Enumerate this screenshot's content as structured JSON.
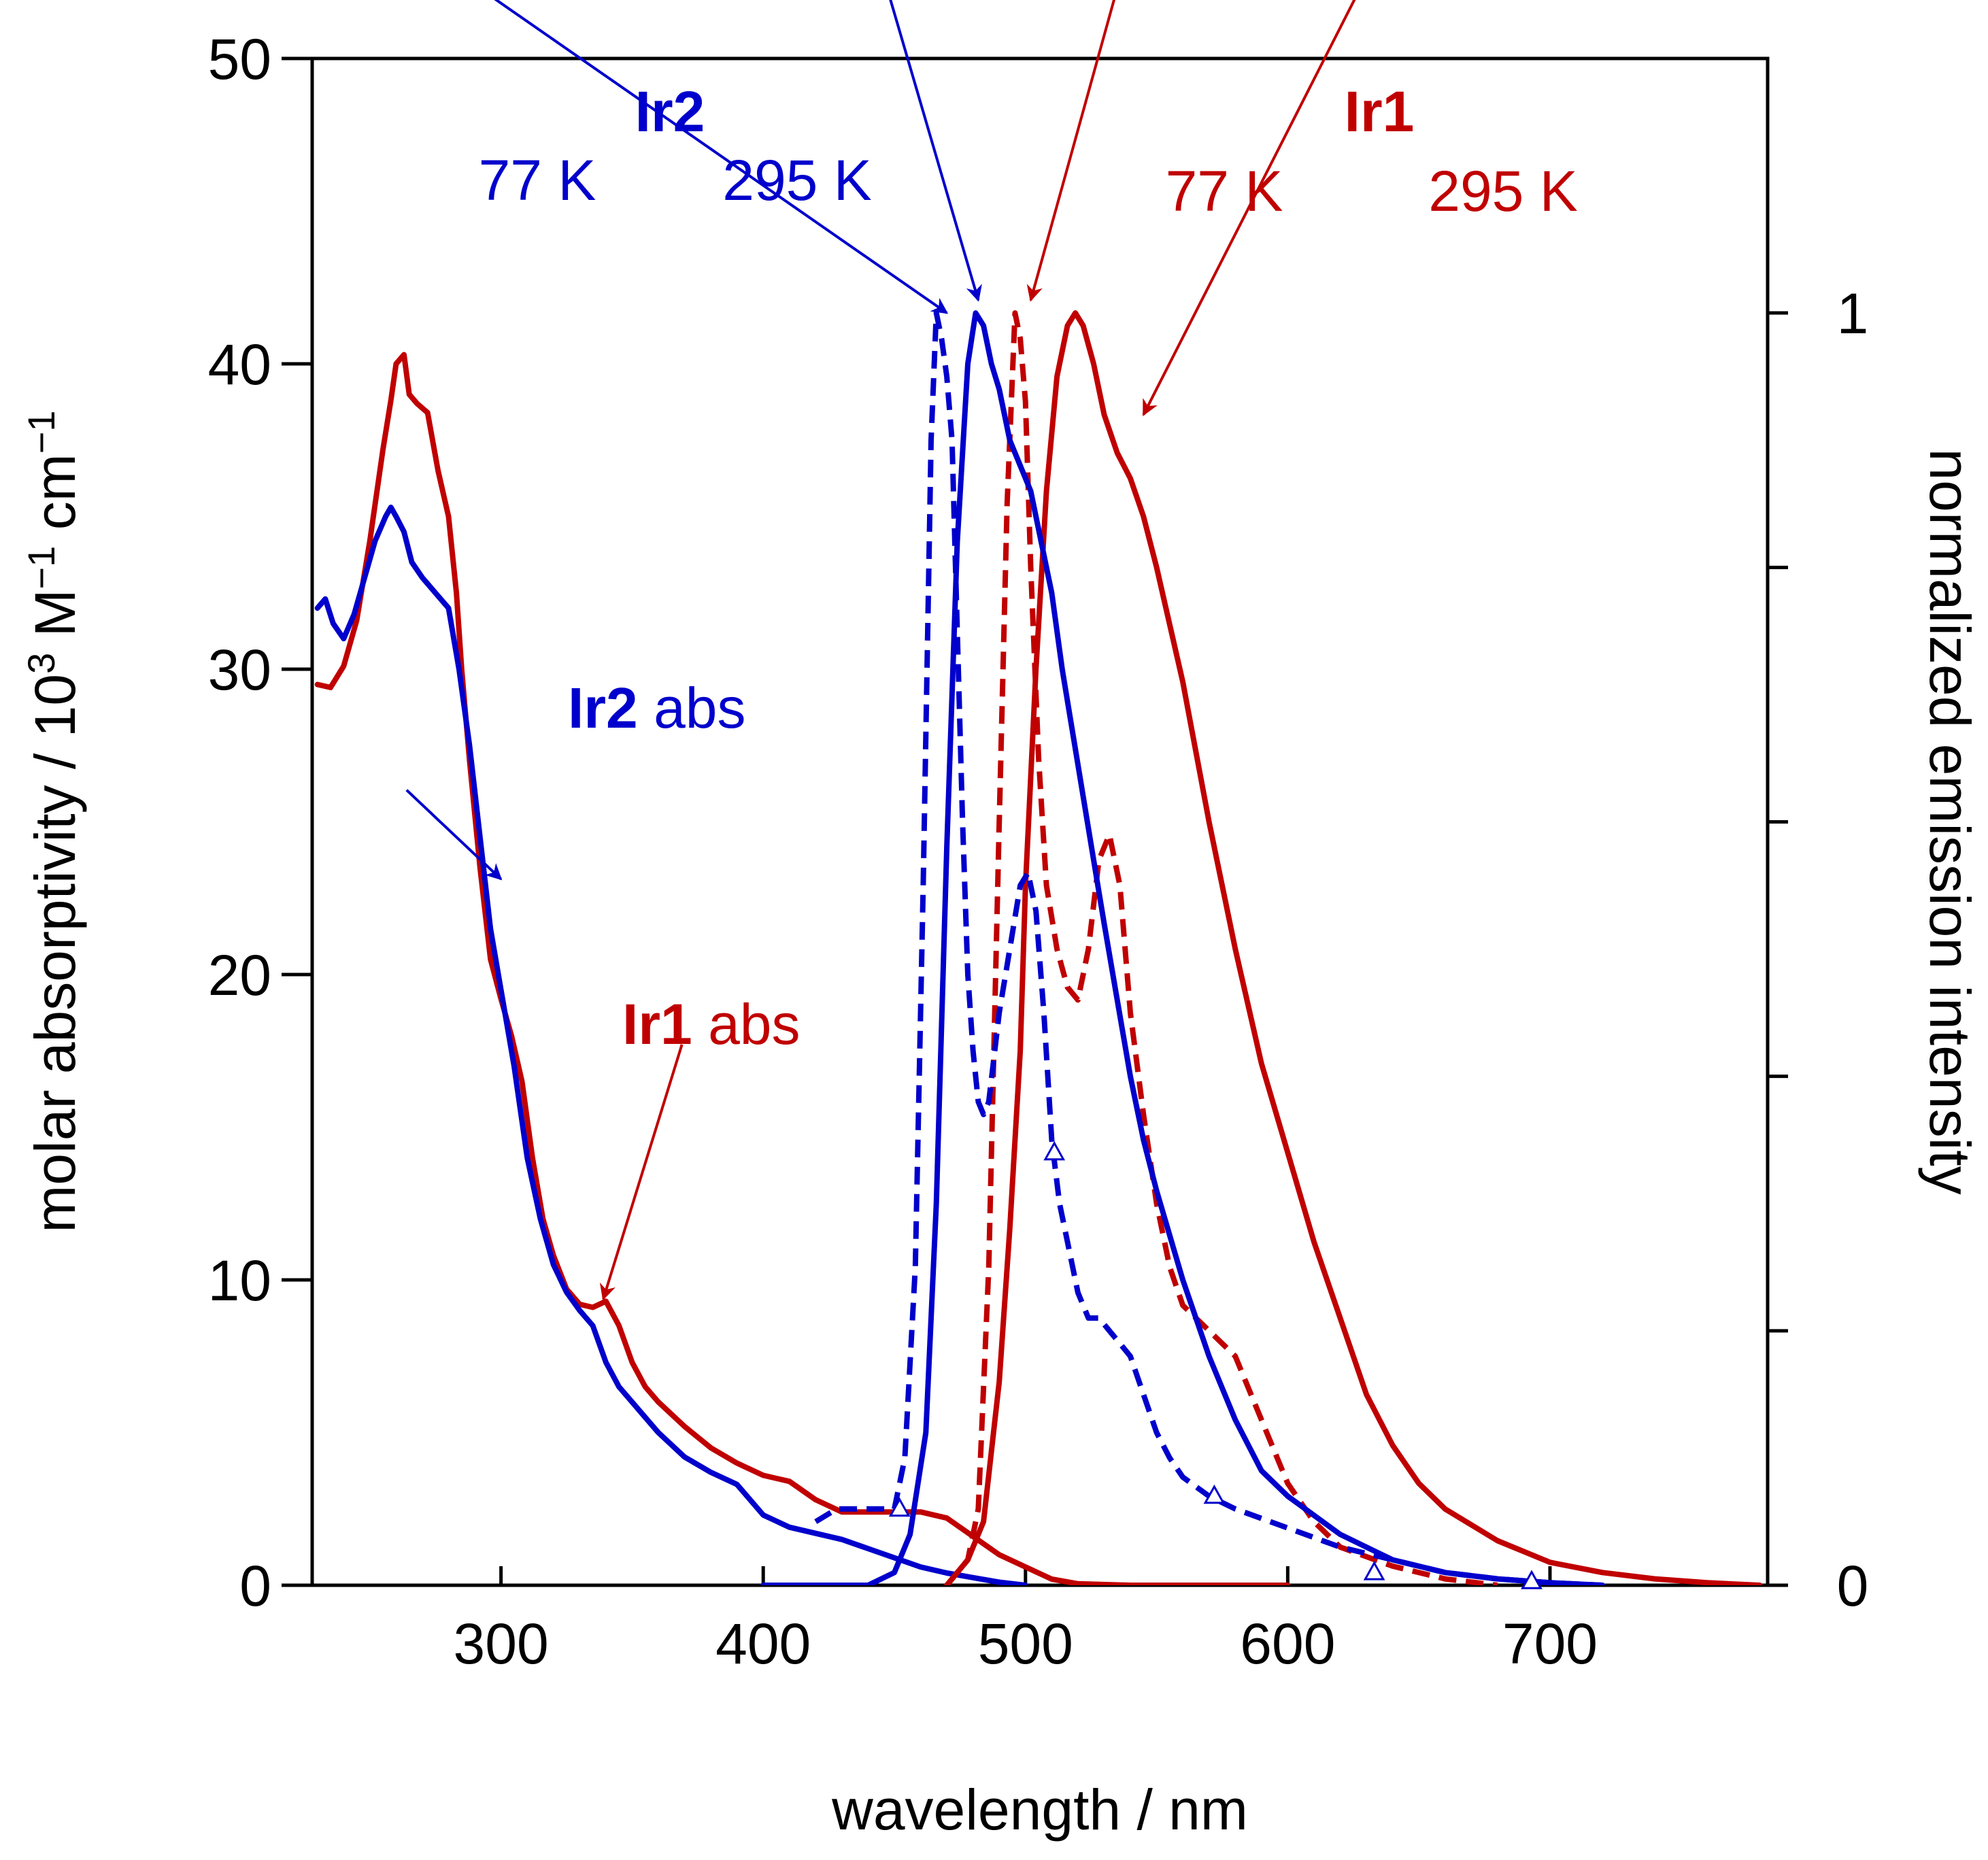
{
  "chart_data": {
    "type": "line",
    "xlabel": "wavelength / nm",
    "ylabel_left": "molar absorptivity / 10",
    "ylabel_left_exp": "3",
    "ylabel_left_unit_M": " M",
    "ylabel_left_exp_M": "−1",
    "ylabel_left_unit_cm": " cm",
    "ylabel_left_exp_cm": "−1",
    "ylabel_right": "normalized emission intensity",
    "xlim": [
      228,
      783
    ],
    "ylim_left": [
      0,
      50
    ],
    "ylim_right": [
      0,
      1.2
    ],
    "xticks": [
      300,
      400,
      500,
      600,
      700
    ],
    "xtick_labels": [
      "300",
      "400",
      "500",
      "600",
      "700"
    ],
    "yticks_left": [
      0,
      10,
      20,
      30,
      40,
      50
    ],
    "ytick_labels_left": [
      "0",
      "10",
      "20",
      "30",
      "40",
      "50"
    ],
    "yticks_right": [
      0,
      0.2,
      0.4,
      0.6,
      0.8,
      1.0
    ],
    "ytick_labels_right": [
      "0",
      "",
      "",
      "",
      "",
      "1"
    ],
    "colors": {
      "ir1": "#c00000",
      "ir2": "#0000cc",
      "axis": "#000000"
    },
    "series": [
      {
        "name": "Ir1 abs",
        "axis": "left",
        "color": "#c00000",
        "dash": false,
        "x": [
          230,
          235,
          240,
          245,
          250,
          255,
          258,
          260,
          263,
          265,
          268,
          272,
          276,
          280,
          283,
          285,
          288,
          292,
          296,
          300,
          304,
          308,
          312,
          316,
          320,
          325,
          330,
          335,
          340,
          345,
          350,
          355,
          360,
          370,
          380,
          390,
          400,
          410,
          420,
          430,
          440,
          450,
          460,
          470,
          480,
          490,
          500,
          510,
          520,
          540,
          560,
          600
        ],
        "y": [
          29.5,
          29.4,
          30.1,
          31.6,
          34.2,
          37.2,
          38.8,
          40.0,
          40.3,
          39.0,
          38.7,
          38.4,
          36.5,
          35.0,
          32.5,
          30.0,
          27.0,
          23.5,
          20.5,
          19.2,
          18.0,
          16.5,
          14.0,
          12.0,
          10.8,
          9.7,
          9.2,
          9.1,
          9.3,
          8.5,
          7.3,
          6.5,
          6.0,
          5.2,
          4.5,
          4.0,
          3.6,
          3.4,
          2.8,
          2.4,
          2.4,
          2.4,
          2.4,
          2.2,
          1.6,
          1.0,
          0.6,
          0.2,
          0.05,
          0.0,
          0.0,
          0.0
        ]
      },
      {
        "name": "Ir2 abs",
        "axis": "left",
        "color": "#0000cc",
        "dash": false,
        "x": [
          230,
          233,
          236,
          240,
          244,
          248,
          252,
          256,
          258,
          260,
          263,
          266,
          270,
          275,
          280,
          284,
          288,
          292,
          296,
          300,
          305,
          310,
          315,
          320,
          325,
          330,
          335,
          340,
          345,
          350,
          355,
          360,
          370,
          380,
          390,
          400,
          410,
          420,
          430,
          440,
          450,
          460,
          470,
          480,
          490,
          500
        ],
        "y": [
          32.0,
          32.3,
          31.5,
          31.0,
          31.8,
          33.0,
          34.2,
          35.0,
          35.3,
          35.0,
          34.5,
          33.5,
          33.0,
          32.5,
          32.0,
          30.0,
          27.5,
          24.5,
          21.5,
          19.5,
          17.0,
          14.0,
          12.0,
          10.5,
          9.6,
          9.0,
          8.5,
          7.3,
          6.5,
          6.0,
          5.5,
          5.0,
          4.2,
          3.7,
          3.3,
          2.3,
          1.9,
          1.7,
          1.5,
          1.2,
          0.9,
          0.6,
          0.4,
          0.25,
          0.1,
          0.0
        ]
      },
      {
        "name": "Ir1 77 K",
        "axis": "right",
        "color": "#c00000",
        "dash": true,
        "x": [
          470,
          478,
          482,
          486,
          490,
          493,
          496,
          498,
          500,
          502,
          505,
          508,
          512,
          516,
          520,
          524,
          528,
          532,
          536,
          540,
          545,
          550,
          555,
          560,
          565,
          570,
          575,
          580,
          590,
          600,
          610,
          620,
          640,
          660,
          680
        ],
        "y": [
          0.0,
          0.02,
          0.06,
          0.25,
          0.6,
          0.85,
          1.0,
          0.98,
          0.93,
          0.8,
          0.65,
          0.55,
          0.5,
          0.47,
          0.46,
          0.5,
          0.57,
          0.59,
          0.55,
          0.45,
          0.37,
          0.3,
          0.25,
          0.22,
          0.21,
          0.2,
          0.19,
          0.18,
          0.13,
          0.08,
          0.05,
          0.03,
          0.015,
          0.005,
          0.0
        ]
      },
      {
        "name": "Ir1 295 K",
        "axis": "right",
        "color": "#c00000",
        "dash": false,
        "x": [
          470,
          478,
          484,
          490,
          494,
          498,
          500,
          504,
          508,
          512,
          516,
          519,
          522,
          526,
          530,
          535,
          540,
          545,
          550,
          560,
          570,
          580,
          590,
          600,
          610,
          620,
          630,
          640,
          650,
          660,
          680,
          700,
          720,
          740,
          760,
          780
        ],
        "y": [
          0.0,
          0.02,
          0.05,
          0.16,
          0.28,
          0.42,
          0.55,
          0.72,
          0.86,
          0.95,
          0.99,
          1.0,
          0.99,
          0.96,
          0.92,
          0.89,
          0.87,
          0.84,
          0.8,
          0.71,
          0.6,
          0.5,
          0.41,
          0.34,
          0.27,
          0.21,
          0.15,
          0.11,
          0.08,
          0.06,
          0.035,
          0.018,
          0.01,
          0.005,
          0.002,
          0.0
        ]
      },
      {
        "name": "Ir2 77 K",
        "axis": "right",
        "color": "#0000cc",
        "dash": true,
        "x": [
          420,
          428,
          435,
          440,
          446,
          450,
          454,
          458,
          461,
          464,
          466,
          468,
          470,
          472,
          474,
          476,
          478,
          480,
          482,
          484,
          486,
          490,
          494,
          498,
          501,
          504,
          507,
          510,
          513,
          516,
          520,
          524,
          528,
          532,
          536,
          540,
          545,
          550,
          555,
          560,
          570,
          580,
          600,
          620,
          640,
          660,
          680,
          700,
          720
        ],
        "y": [
          0.05,
          0.06,
          0.06,
          0.06,
          0.06,
          0.06,
          0.1,
          0.25,
          0.55,
          0.9,
          1.0,
          0.98,
          0.95,
          0.9,
          0.75,
          0.6,
          0.48,
          0.42,
          0.38,
          0.37,
          0.38,
          0.45,
          0.5,
          0.55,
          0.56,
          0.53,
          0.45,
          0.35,
          0.3,
          0.27,
          0.23,
          0.21,
          0.21,
          0.2,
          0.19,
          0.18,
          0.15,
          0.12,
          0.1,
          0.085,
          0.07,
          0.06,
          0.045,
          0.03,
          0.02,
          0.01,
          0.005,
          0.002,
          0.0
        ]
      },
      {
        "name": "Ir2 295 K",
        "axis": "right",
        "color": "#0000cc",
        "dash": false,
        "x": [
          400,
          440,
          450,
          456,
          462,
          466,
          470,
          474,
          478,
          481,
          484,
          487,
          490,
          494,
          498,
          502,
          506,
          510,
          514,
          518,
          522,
          526,
          530,
          535,
          540,
          545,
          550,
          560,
          570,
          580,
          590,
          600,
          610,
          620,
          640,
          660,
          680,
          700,
          720
        ],
        "y": [
          0.0,
          0.0,
          0.01,
          0.04,
          0.12,
          0.3,
          0.58,
          0.82,
          0.96,
          1.0,
          0.99,
          0.96,
          0.94,
          0.9,
          0.88,
          0.86,
          0.82,
          0.78,
          0.72,
          0.67,
          0.62,
          0.57,
          0.52,
          0.46,
          0.4,
          0.35,
          0.31,
          0.24,
          0.18,
          0.13,
          0.09,
          0.07,
          0.055,
          0.04,
          0.02,
          0.01,
          0.005,
          0.002,
          0.0
        ]
      }
    ],
    "markers": {
      "name": "Ir2 77 K markers",
      "axis": "right",
      "color": "#0000cc",
      "shape": "open-triangle",
      "x": [
        452,
        511,
        572,
        633,
        693
      ],
      "y": [
        0.06,
        0.34,
        0.07,
        0.01,
        0.003
      ]
    },
    "annotations": {
      "ir2_title": "Ir2",
      "ir2_77k": "77 K",
      "ir2_295k": "295 K",
      "ir1_title": "Ir1",
      "ir1_77k": "77 K",
      "ir1_295k": "295 K",
      "ir2_abs_bold": "Ir2",
      "ir2_abs_text": " abs",
      "ir1_abs_bold": "Ir1",
      "ir1_abs_text": " abs"
    },
    "arrows": [
      {
        "name": "ir2-77k-arrow",
        "color": "#0000cc",
        "from": [
          271,
          1.285
        ],
        "to": [
          470,
          1.0
        ]
      },
      {
        "name": "ir2-295k-arrow",
        "color": "#0000cc",
        "from": [
          443,
          1.285
        ],
        "to": [
          482,
          1.01
        ]
      },
      {
        "name": "ir1-77k-arrow",
        "color": "#c00000",
        "from": [
          539,
          1.285
        ],
        "to": [
          502,
          1.01
        ]
      },
      {
        "name": "ir1-295k-arrow",
        "color": "#c00000",
        "from": [
          635,
          1.285
        ],
        "to": [
          545,
          0.92
        ]
      },
      {
        "name": "ir2-abs-arrow",
        "color": "#0000cc",
        "from": [
          264,
          0.625
        ],
        "to": [
          300,
          0.555
        ]
      },
      {
        "name": "ir1-abs-arrow",
        "color": "#c00000",
        "from": [
          369,
          0.425
        ],
        "to": [
          339,
          0.225
        ]
      }
    ]
  }
}
